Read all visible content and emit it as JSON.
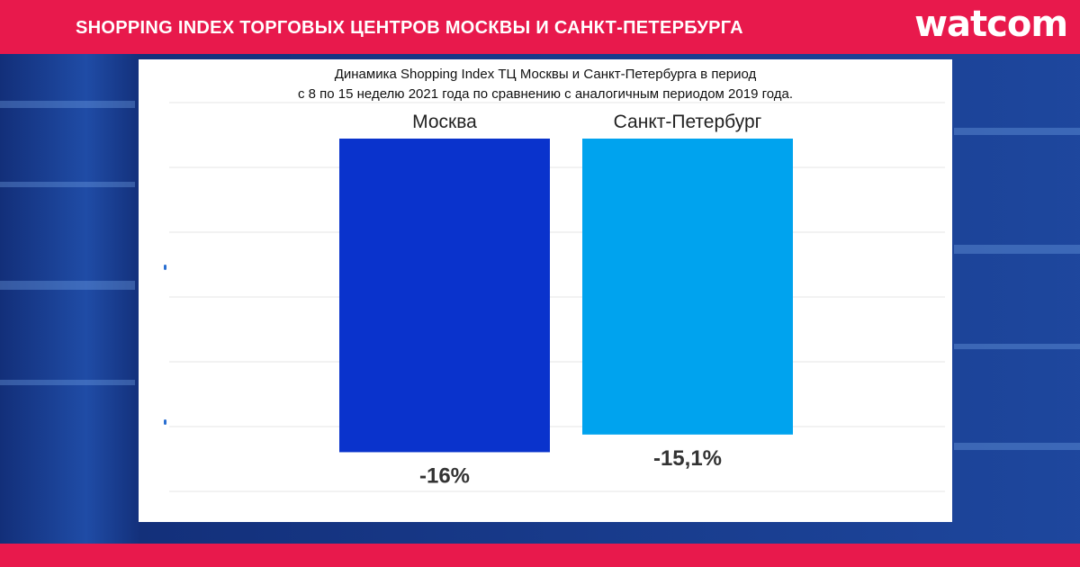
{
  "header": {
    "title": "SHOPPING INDEX ТОРГОВЫХ ЦЕНТРОВ МОСКВЫ И САНКТ-ПЕТЕРБУРГА",
    "logo": "watcom"
  },
  "colors": {
    "brand": "#e8194c",
    "moscow": "#0a33cc",
    "spb": "#00a3ee"
  },
  "chart_data": {
    "type": "bar",
    "title_lines": [
      "Динамика Shopping Index ТЦ Москвы и Санкт-Петербурга в период",
      "с 8 по 15 неделю 2021 года по сравнению с аналогичным периодом 2019 года."
    ],
    "categories": [
      "Москва",
      "Санкт-Петербург"
    ],
    "values": [
      -16,
      -15.1
    ],
    "value_labels": [
      "-16%",
      "-15,1%"
    ],
    "grid": true,
    "xlabel": "",
    "ylabel": ""
  }
}
